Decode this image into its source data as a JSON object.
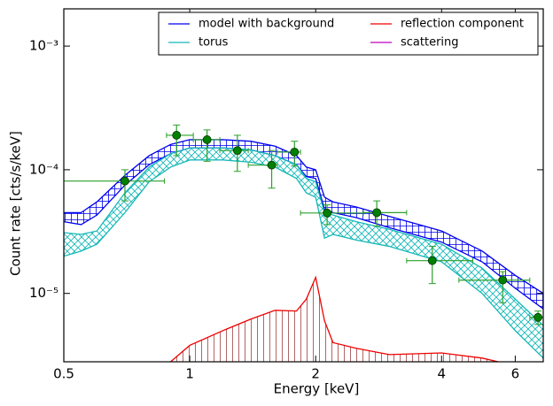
{
  "chart_data": {
    "type": "line",
    "xlabel": "Energy [keV]",
    "ylabel": "Count rate [cts/s/keV]",
    "xscale": "log",
    "yscale": "log",
    "xlim": [
      0.5,
      7
    ],
    "ylim": [
      2.8e-06,
      0.002
    ],
    "xticks": [
      0.5,
      1,
      2,
      4,
      6
    ],
    "yticks": [
      {
        "value": 1e-05,
        "label": "10⁻⁵"
      },
      {
        "value": 0.0001,
        "label": "10⁻⁴"
      },
      {
        "value": 0.001,
        "label": "10⁻³"
      }
    ],
    "legend": "upper right",
    "x": [
      0.5,
      0.55,
      0.6,
      0.7,
      0.8,
      0.9,
      1.0,
      1.2,
      1.4,
      1.6,
      1.8,
      1.9,
      2.0,
      2.1,
      2.2,
      2.5,
      3,
      4,
      5,
      6,
      7
    ],
    "series": [
      {
        "name": "model with background",
        "color": "#0000ee",
        "style": "band",
        "values_high": [
          4.5e-05,
          4.5e-05,
          5.5e-05,
          9e-05,
          0.00013,
          0.00016,
          0.000175,
          0.000175,
          0.00017,
          0.000155,
          0.00013,
          0.000105,
          0.0001,
          6e-05,
          5.5e-05,
          5e-05,
          4.2e-05,
          3.2e-05,
          2.2e-05,
          1.4e-05,
          1e-05
        ],
        "values_low": [
          3.8e-05,
          3.6e-05,
          4.3e-05,
          7.5e-05,
          0.00011,
          0.000135,
          0.00015,
          0.00015,
          0.000145,
          0.00013,
          0.00011,
          8.8e-05,
          8.5e-05,
          4.8e-05,
          4.5e-05,
          4.1e-05,
          3.4e-05,
          2.6e-05,
          1.8e-05,
          1.1e-05,
          7.5e-06
        ]
      },
      {
        "name": "torus",
        "color": "#17b8b8",
        "style": "band",
        "values_high": [
          3.1e-05,
          3e-05,
          3.2e-05,
          6.5e-05,
          0.000105,
          0.000135,
          0.00015,
          0.00015,
          0.000145,
          0.00013,
          0.00011,
          8.5e-05,
          8e-05,
          4.5e-05,
          4.3e-05,
          3.8e-05,
          3.3e-05,
          2.5e-05,
          1.6e-05,
          9e-06,
          5.5e-06
        ],
        "values_low": [
          2e-05,
          2.2e-05,
          2.5e-05,
          4.5e-05,
          8e-05,
          0.000105,
          0.00012,
          0.00012,
          0.000115,
          0.000105,
          8.5e-05,
          6.5e-05,
          6e-05,
          2.8e-05,
          3e-05,
          2.7e-05,
          2.4e-05,
          1.8e-05,
          1e-05,
          5e-06,
          3e-06
        ]
      },
      {
        "name": "reflection component",
        "color": "#ee0000",
        "style": "line",
        "values": [
          null,
          null,
          null,
          null,
          null,
          2.8e-06,
          3.8e-06,
          5e-06,
          6.2e-06,
          7.3e-06,
          7.2e-06,
          9e-06,
          1.35e-05,
          6e-06,
          4e-06,
          3.6e-06,
          3.2e-06,
          3.3e-06,
          3e-06,
          2.6e-06,
          2.4e-06
        ]
      },
      {
        "name": "scattering",
        "color": "#bf00bf",
        "style": "line"
      }
    ],
    "points": {
      "color": "#008000",
      "errorbar_color": "#2ca02c",
      "x": [
        0.7,
        0.93,
        1.1,
        1.3,
        1.57,
        1.78,
        2.13,
        2.8,
        3.8,
        5.6,
        6.8
      ],
      "x_low": [
        0.5,
        0.88,
        1.02,
        1.18,
        1.38,
        1.62,
        1.84,
        2.6,
        3.3,
        4.4,
        6.5
      ],
      "x_high": [
        0.87,
        1.02,
        1.18,
        1.38,
        1.62,
        1.84,
        2.6,
        3.3,
        4.75,
        6.5,
        7
      ],
      "values": [
        8.1e-05,
        0.00019,
        0.000175,
        0.000143,
        0.000109,
        0.000139,
        4.47e-05,
        4.5e-05,
        1.84e-05,
        1.28e-05,
        6.4e-06
      ],
      "y_low": [
        5.6e-05,
        0.00013,
        0.000117,
        9.7e-05,
        7.1e-05,
        0.000107,
        3.6e-05,
        3.5e-05,
        1.2e-05,
        8.4e-06,
        5.6e-06
      ],
      "y_high": [
        0.0001,
        0.00023,
        0.00021,
        0.00019,
        0.000143,
        0.00017,
        5.2e-05,
        5.6e-05,
        2.4e-05,
        1.5e-05,
        7.2e-06
      ]
    }
  }
}
